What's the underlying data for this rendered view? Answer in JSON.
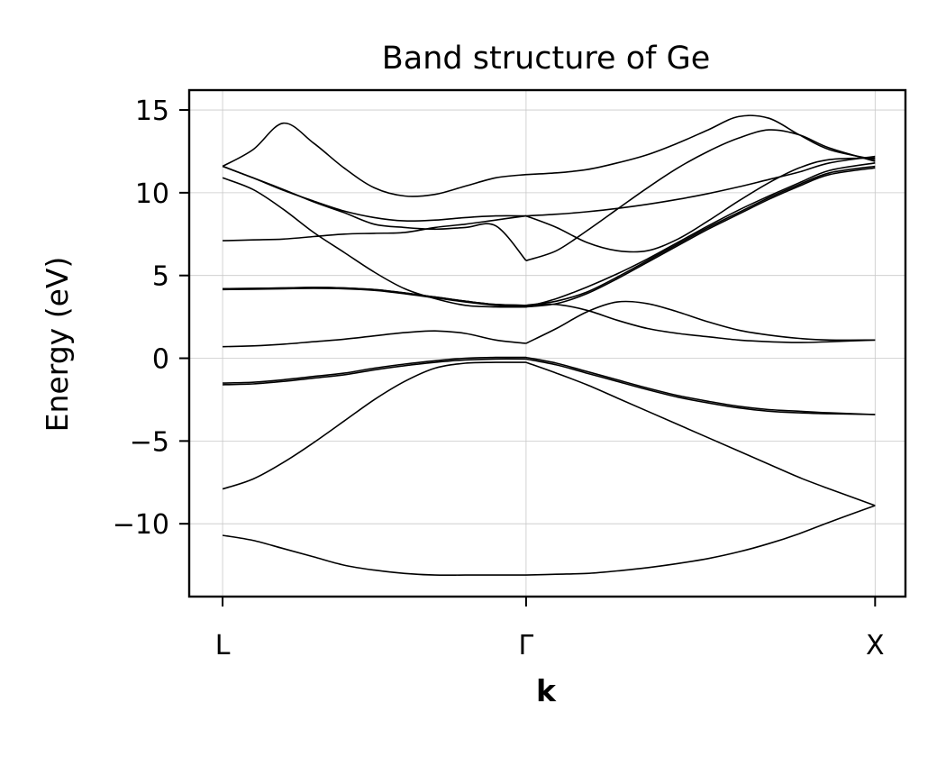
{
  "chart_data": {
    "type": "line",
    "title": "Band structure of Ge",
    "xlabel": "k",
    "ylabel": "Energy (eV)",
    "x": [
      0,
      0.1,
      0.2,
      0.3,
      0.4,
      0.5,
      0.6,
      0.7,
      0.8,
      0.9,
      1.0,
      1.1,
      1.2,
      1.3,
      1.4,
      1.5,
      1.6,
      1.7,
      1.8,
      1.9,
      2.0,
      2.15
    ],
    "xticks": [
      {
        "label": "L",
        "value": 0
      },
      {
        "label": "Γ",
        "value": 1.0
      },
      {
        "label": "X",
        "value": 2.15
      }
    ],
    "ylim": [
      -14.4,
      16.2
    ],
    "xlim": [
      -0.11,
      2.25
    ],
    "yticks": [
      {
        "label": "15",
        "value": 15
      },
      {
        "label": "10",
        "value": 10
      },
      {
        "label": "5",
        "value": 5
      },
      {
        "label": "0",
        "value": 0
      },
      {
        "label": "−5",
        "value": -5
      },
      {
        "label": "−10",
        "value": -10
      }
    ],
    "grid": true,
    "line_color": "#000000",
    "grid_color": "#c8c8c8",
    "series": [
      {
        "values": [
          -10.7,
          -11.0,
          -11.5,
          -12.0,
          -12.5,
          -12.8,
          -13.0,
          -13.1,
          -13.1,
          -13.1,
          -13.1,
          -13.05,
          -13.0,
          -12.85,
          -12.65,
          -12.4,
          -12.1,
          -11.7,
          -11.2,
          -10.6,
          -9.9,
          -8.9
        ]
      },
      {
        "values": [
          -7.9,
          -7.3,
          -6.3,
          -5.1,
          -3.8,
          -2.5,
          -1.4,
          -0.6,
          -0.3,
          -0.25,
          -0.25,
          -0.9,
          -1.6,
          -2.4,
          -3.2,
          -4.0,
          -4.8,
          -5.6,
          -6.4,
          -7.2,
          -7.9,
          -8.9
        ]
      },
      {
        "values": [
          -1.6,
          -1.55,
          -1.4,
          -1.2,
          -1.0,
          -0.7,
          -0.45,
          -0.25,
          -0.1,
          -0.05,
          -0.05,
          -0.4,
          -0.9,
          -1.4,
          -1.9,
          -2.35,
          -2.7,
          -3.0,
          -3.2,
          -3.3,
          -3.35,
          -3.4
        ]
      },
      {
        "values": [
          -1.5,
          -1.45,
          -1.3,
          -1.1,
          -0.9,
          -0.6,
          -0.35,
          -0.15,
          0.0,
          0.05,
          0.05,
          -0.3,
          -0.8,
          -1.3,
          -1.8,
          -2.25,
          -2.6,
          -2.9,
          -3.1,
          -3.2,
          -3.3,
          -3.4
        ]
      },
      {
        "values": [
          0.7,
          0.75,
          0.85,
          1.0,
          1.15,
          1.35,
          1.55,
          1.65,
          1.5,
          1.1,
          0.9,
          1.8,
          2.8,
          3.4,
          3.3,
          2.8,
          2.2,
          1.7,
          1.4,
          1.2,
          1.1,
          1.1
        ]
      },
      {
        "values": [
          4.2,
          4.22,
          4.25,
          4.28,
          4.25,
          4.15,
          3.95,
          3.7,
          3.45,
          3.25,
          3.2,
          3.25,
          2.9,
          2.3,
          1.8,
          1.5,
          1.3,
          1.1,
          1.0,
          0.95,
          1.0,
          1.1
        ]
      },
      {
        "values": [
          4.15,
          4.17,
          4.2,
          4.22,
          4.2,
          4.1,
          3.9,
          3.65,
          3.4,
          3.2,
          3.1,
          3.3,
          3.9,
          4.8,
          5.8,
          6.8,
          7.8,
          8.7,
          9.6,
          10.4,
          11.1,
          11.5
        ]
      },
      {
        "values": [
          4.2,
          4.22,
          4.25,
          4.28,
          4.25,
          4.15,
          3.95,
          3.7,
          3.45,
          3.25,
          3.2,
          3.45,
          4.0,
          4.9,
          5.9,
          6.9,
          7.9,
          8.8,
          9.7,
          10.5,
          11.2,
          11.6
        ]
      },
      {
        "values": [
          10.9,
          10.2,
          9.0,
          7.6,
          6.4,
          5.2,
          4.2,
          3.6,
          3.2,
          3.1,
          3.1,
          3.6,
          4.3,
          5.1,
          6.0,
          7.0,
          8.0,
          8.95,
          9.8,
          10.6,
          11.35,
          11.8
        ]
      },
      {
        "values": [
          7.1,
          7.15,
          7.2,
          7.35,
          7.5,
          7.55,
          7.6,
          7.9,
          8.1,
          8.35,
          8.6,
          7.9,
          7.0,
          6.5,
          6.5,
          7.2,
          8.3,
          9.5,
          10.6,
          11.5,
          12.0,
          12.1
        ]
      },
      {
        "values": [
          11.6,
          10.9,
          10.2,
          9.45,
          8.8,
          8.1,
          7.9,
          7.8,
          7.9,
          8.0,
          5.9,
          6.5,
          7.7,
          9.0,
          10.3,
          11.5,
          12.5,
          13.3,
          13.8,
          13.5,
          12.7,
          11.9
        ]
      },
      {
        "values": [
          11.6,
          10.9,
          10.15,
          9.5,
          8.9,
          8.5,
          8.3,
          8.35,
          8.5,
          8.6,
          8.6,
          8.7,
          8.85,
          9.05,
          9.3,
          9.6,
          9.95,
          10.35,
          10.8,
          11.25,
          11.8,
          12.2
        ]
      },
      {
        "values": [
          11.6,
          12.6,
          14.2,
          13.0,
          11.5,
          10.3,
          9.8,
          9.9,
          10.4,
          10.9,
          11.1,
          11.2,
          11.4,
          11.8,
          12.3,
          13.0,
          13.8,
          14.6,
          14.5,
          13.5,
          12.6,
          12.0
        ]
      }
    ]
  }
}
